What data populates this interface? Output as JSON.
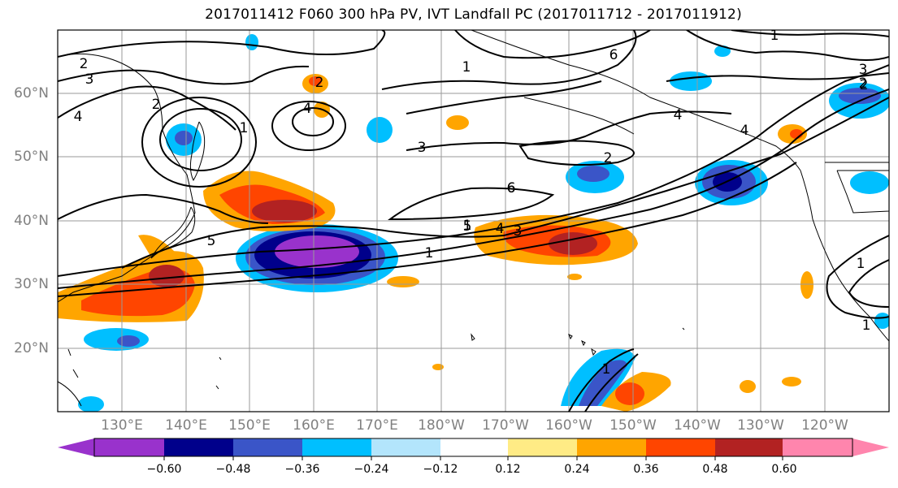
{
  "title": "2017011412 F060 300 hPa PV, IVT Landfall PC (2017011712 - 2017011912)",
  "lat_labels": [
    "60°N",
    "50°N",
    "40°N",
    "30°N",
    "20°N"
  ],
  "lon_labels": [
    "130°E",
    "140°E",
    "150°E",
    "160°E",
    "170°E",
    "180°W",
    "170°W",
    "160°W",
    "150°W",
    "140°W",
    "130°W",
    "120°W"
  ],
  "colorbar": {
    "colors": [
      "#9932CC",
      "#00008B",
      "#3A55C8",
      "#00BFFF",
      "#B3E5FC",
      "#FFFFFF",
      "#FFEB85",
      "#FFA500",
      "#FF4500",
      "#B22222",
      "#FF85AD"
    ],
    "tick_labels": [
      "−0.60",
      "−0.48",
      "−0.36",
      "−0.24",
      "−0.12",
      "0.12",
      "0.24",
      "0.36",
      "0.48",
      "0.60"
    ]
  },
  "contour_labels": [
    "2",
    "3",
    "4",
    "2",
    "1",
    "4",
    "2",
    "1",
    "6",
    "1",
    "3",
    "2",
    "4",
    "6",
    "2",
    "3",
    "2",
    "4",
    "1",
    "5",
    "6",
    "5",
    "4",
    "3",
    "1",
    "1",
    "1",
    "1"
  ],
  "colors": {
    "axis_label": "#808080",
    "grid": "#9a9a9a",
    "contour": "#000000",
    "coast": "#000000"
  }
}
